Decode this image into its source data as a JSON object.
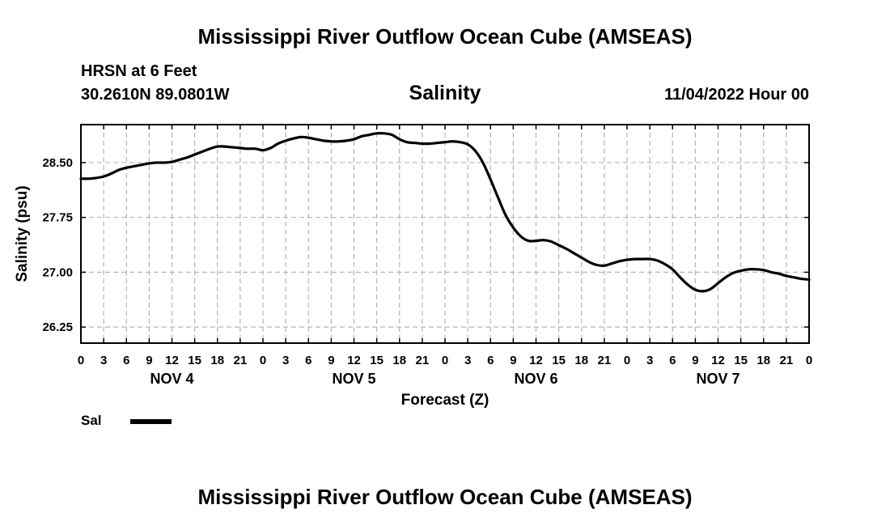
{
  "header": {
    "title": "Mississippi River Outflow Ocean Cube (AMSEAS)",
    "station": "HRSN at 6 Feet",
    "coordinates": "30.2610N  89.0801W",
    "parameter": "Salinity",
    "datetime": "11/04/2022 Hour 00"
  },
  "footer": {
    "title": "Mississippi River Outflow Ocean Cube (AMSEAS)"
  },
  "legend": {
    "label": "Sal",
    "color": "#000000"
  },
  "chart_data": {
    "type": "line",
    "title": "Salinity",
    "xlabel": "Forecast (Z)",
    "ylabel": "Salinity (psu)",
    "xlim": [
      0,
      96
    ],
    "ylim": [
      26.03,
      29.02
    ],
    "grid": true,
    "yticks": [
      26.25,
      27.0,
      27.75,
      28.5
    ],
    "ytick_labels": [
      "26.25",
      "27.00",
      "27.75",
      "28.50"
    ],
    "xticks": [
      0,
      3,
      6,
      9,
      12,
      15,
      18,
      21,
      24,
      27,
      30,
      33,
      36,
      39,
      42,
      45,
      48,
      51,
      54,
      57,
      60,
      63,
      66,
      69,
      72,
      75,
      78,
      81,
      84,
      87,
      90,
      93,
      96
    ],
    "xtick_labels": [
      "0",
      "3",
      "6",
      "9",
      "12",
      "15",
      "18",
      "21",
      "0",
      "3",
      "6",
      "9",
      "12",
      "15",
      "18",
      "21",
      "0",
      "3",
      "6",
      "9",
      "12",
      "15",
      "18",
      "21",
      "0",
      "3",
      "6",
      "9",
      "12",
      "15",
      "18",
      "21",
      "0"
    ],
    "day_labels": [
      {
        "x": 12,
        "label": "NOV 4"
      },
      {
        "x": 36,
        "label": "NOV 5"
      },
      {
        "x": 60,
        "label": "NOV 6"
      },
      {
        "x": 84,
        "label": "NOV 7"
      }
    ],
    "series": [
      {
        "name": "Sal",
        "color": "#000000",
        "x": [
          0,
          1,
          2,
          3,
          4,
          5,
          6,
          7,
          8,
          9,
          10,
          11,
          12,
          13,
          14,
          15,
          16,
          17,
          18,
          19,
          20,
          21,
          22,
          23,
          24,
          25,
          26,
          27,
          28,
          29,
          30,
          31,
          32,
          33,
          34,
          35,
          36,
          37,
          38,
          39,
          40,
          41,
          42,
          43,
          44,
          45,
          46,
          47,
          48,
          49,
          50,
          51,
          52,
          53,
          54,
          55,
          56,
          57,
          58,
          59,
          60,
          61,
          62,
          63,
          64,
          65,
          66,
          67,
          68,
          69,
          70,
          71,
          72,
          73,
          74,
          75,
          76,
          77,
          78,
          79,
          80,
          81,
          82,
          83,
          84,
          85,
          86,
          87,
          88,
          89,
          90,
          91,
          92,
          93,
          94,
          95,
          96
        ],
        "y": [
          28.28,
          28.28,
          28.29,
          28.31,
          28.35,
          28.4,
          28.43,
          28.45,
          28.47,
          28.49,
          28.5,
          28.5,
          28.51,
          28.54,
          28.57,
          28.61,
          28.65,
          28.69,
          28.72,
          28.72,
          28.71,
          28.7,
          28.69,
          28.69,
          28.67,
          28.7,
          28.76,
          28.8,
          28.83,
          28.85,
          28.84,
          28.82,
          28.8,
          28.79,
          28.79,
          28.8,
          28.82,
          28.86,
          28.88,
          28.9,
          28.9,
          28.88,
          28.82,
          28.78,
          28.77,
          28.76,
          28.76,
          28.77,
          28.78,
          28.79,
          28.78,
          28.75,
          28.66,
          28.5,
          28.27,
          28.02,
          27.78,
          27.61,
          27.49,
          27.43,
          27.43,
          27.44,
          27.42,
          27.37,
          27.32,
          27.26,
          27.2,
          27.14,
          27.1,
          27.09,
          27.12,
          27.15,
          27.17,
          27.18,
          27.18,
          27.18,
          27.16,
          27.11,
          27.04,
          26.93,
          26.83,
          26.76,
          26.74,
          26.77,
          26.85,
          26.93,
          26.99,
          27.02,
          27.04,
          27.04,
          27.03,
          27.0,
          26.98,
          26.95,
          26.93,
          26.91,
          26.9
        ]
      }
    ]
  }
}
